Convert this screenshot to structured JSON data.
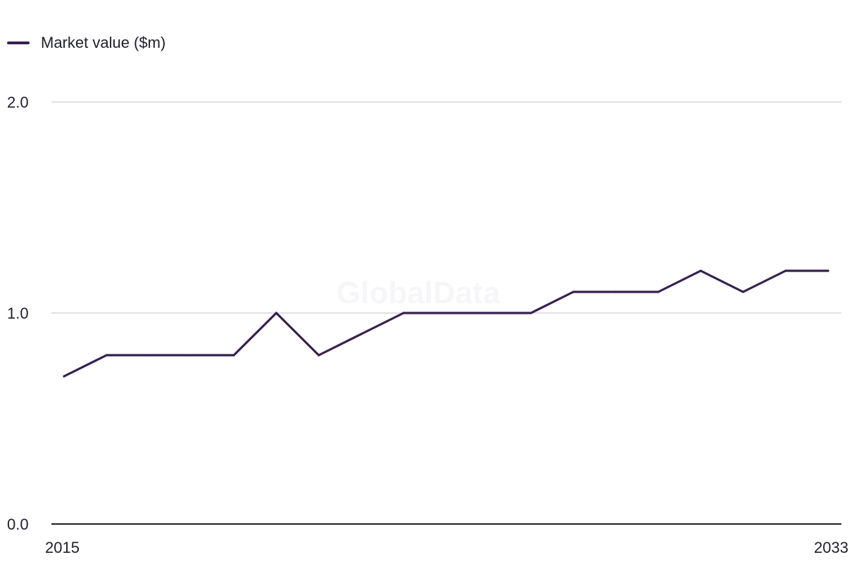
{
  "watermark": "GlobalData",
  "colors": {
    "series": "#35214f",
    "grid": "#d6d6dc",
    "axis": "#1f1f2e"
  },
  "chart_data": {
    "type": "line",
    "title": "",
    "xlabel": "",
    "ylabel": "",
    "x": [
      2015,
      2016,
      2017,
      2018,
      2019,
      2020,
      2021,
      2022,
      2023,
      2024,
      2025,
      2026,
      2027,
      2028,
      2029,
      2030,
      2031,
      2032,
      2033
    ],
    "series": [
      {
        "name": "Market value ($m)",
        "values": [
          0.7,
          0.8,
          0.8,
          0.8,
          0.8,
          1.0,
          0.8,
          0.9,
          1.0,
          1.0,
          1.0,
          1.0,
          1.1,
          1.1,
          1.1,
          1.2,
          1.1,
          1.2,
          1.2
        ]
      }
    ],
    "ylim": [
      0,
      2
    ],
    "y_ticks": [
      "0.0",
      "1.0",
      "2.0"
    ],
    "x_tick_labels": [
      "2015",
      "2033"
    ],
    "grid": true,
    "legend": "top-left"
  }
}
